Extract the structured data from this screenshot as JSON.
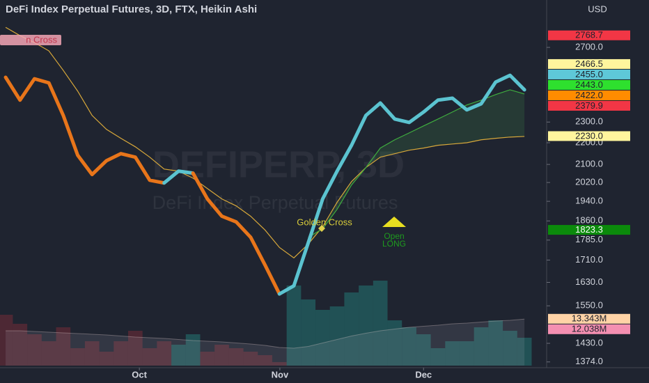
{
  "chart_data": {
    "type": "line",
    "title": "DeFi Index Perpetual Futures, 3D, FTX, Heikin Ashi",
    "currency": "USD",
    "watermark": "DEFIPERP, 3D",
    "watermark_subtitle": "DeFi Index Perpetual Futures",
    "log_scale": true,
    "grid": false,
    "xlim": [
      -0.39,
      37.54
    ],
    "xticks": [
      {
        "value": 9.28,
        "label": "Oct"
      },
      {
        "value": 19.03,
        "label": "Nov"
      },
      {
        "value": 29.0,
        "label": "Dec"
      }
    ],
    "ylim": [
      1333,
      2923
    ],
    "yticks": [
      {
        "value": 2700,
        "label": "2700.0"
      },
      {
        "value": 2300,
        "label": "2300.0"
      },
      {
        "value": 2200,
        "label": "2200.0"
      },
      {
        "value": 2100,
        "label": "2100.0"
      },
      {
        "value": 2020,
        "label": "2020.0"
      },
      {
        "value": 1940,
        "label": "1940.0"
      },
      {
        "value": 1860,
        "label": "1860.0"
      },
      {
        "value": 1785,
        "label": "1785.0"
      },
      {
        "value": 1710,
        "label": "1710.0"
      },
      {
        "value": 1630,
        "label": "1630.0"
      },
      {
        "value": 1550,
        "label": "1550.0"
      },
      {
        "value": 1430,
        "label": "1430.0"
      },
      {
        "value": 1374,
        "label": "1374.0"
      }
    ],
    "series": [
      {
        "values": [
          2532,
          2411,
          2524,
          2502,
          2333,
          2142,
          2055,
          2117,
          2149,
          2133,
          2030,
          2018,
          2070,
          2061,
          1950,
          1879,
          1856,
          1796,
          1692,
          1590,
          1618,
          1775,
          1950,
          2070,
          2188,
          2333,
          2396,
          2315,
          2298,
          2350,
          2411,
          2421,
          2361,
          2392,
          2506,
          2543,
          2465
        ],
        "colors": [
          "#e8751a",
          "#e8751a",
          "#e8751a",
          "#e8751a",
          "#e8751a",
          "#e8751a",
          "#e8751a",
          "#e8751a",
          "#e8751a",
          "#e8751a",
          "#e8751a",
          "#e8751a",
          "#5bc3d0",
          "#5bc3d0",
          "#e8751a",
          "#e8751a",
          "#e8751a",
          "#e8751a",
          "#e8751a",
          "#e8751a",
          "#5bc3d0",
          "#5bc3d0",
          "#5bc3d0",
          "#5bc3d0",
          "#5bc3d0",
          "#5bc3d0",
          "#5bc3d0",
          "#5bc3d0",
          "#5bc3d0",
          "#5bc3d0",
          "#5bc3d0",
          "#5bc3d0",
          "#5bc3d0",
          "#5bc3d0",
          "#5bc3d0",
          "#5bc3d0",
          "#5bc3d0"
        ]
      },
      {
        "color": "#d8a83a",
        "values": [
          2819,
          2769,
          2728,
          2680,
          2570,
          2458,
          2333,
          2264,
          2221,
          2181,
          2133,
          2079,
          2070,
          2039,
          1994,
          1950,
          1921,
          1879,
          1824,
          1757,
          1718,
          1770,
          1837,
          1936,
          2024,
          2086,
          2133,
          2149,
          2165,
          2175,
          2188,
          2194,
          2200,
          2214,
          2221,
          2227,
          2230
        ]
      },
      {
        "color": "#3fae3f",
        "values": [
          null,
          null,
          null,
          null,
          null,
          null,
          null,
          null,
          null,
          null,
          null,
          null,
          null,
          null,
          null,
          null,
          null,
          null,
          null,
          null,
          null,
          1796,
          1829,
          1907,
          2009,
          2086,
          2175,
          2214,
          2247,
          2281,
          2315,
          2350,
          2386,
          2411,
          2440,
          2465,
          2443
        ]
      }
    ],
    "volume": {
      "vlim": [
        0,
        15000000
      ],
      "values": [
        14600000,
        12000000,
        9000000,
        7000000,
        11000000,
        5000000,
        7000000,
        4000000,
        7000000,
        10000000,
        5000000,
        7000000,
        6000000,
        9000000,
        4000000,
        6000000,
        5000000,
        4000000,
        3000000,
        1000000,
        23000000,
        19000000,
        16000000,
        17000000,
        21000000,
        23000000,
        24400000,
        13000000,
        11000000,
        9000000,
        5000000,
        7000000,
        7000000,
        11000000,
        13000000,
        10000000,
        8000000
      ],
      "ma": [
        10000000,
        10000000,
        9800000,
        9600000,
        9400000,
        9200000,
        9000000,
        8800000,
        8500000,
        8200000,
        8000000,
        7800000,
        7500000,
        7200000,
        7000000,
        6800000,
        6500000,
        6200000,
        5800000,
        5200000,
        5000000,
        5500000,
        6500000,
        7500000,
        8500000,
        9300000,
        10000000,
        10500000,
        11000000,
        11300000,
        11600000,
        12000000,
        12200000,
        12500000,
        12800000,
        13000000,
        13343000
      ],
      "labels": [
        {
          "value": 13343000,
          "label": "13.343M",
          "color": "#ffd3a6"
        },
        {
          "value": 12038000,
          "label": "12.038M",
          "color": "#f48fb1"
        }
      ]
    },
    "price_labels": [
      {
        "value": 2768.7,
        "label": "2768.7",
        "color": "#f23645",
        "text": "#1e222d"
      },
      {
        "value": 2466.5,
        "label": "2466.5",
        "color": "#fff59d",
        "text": "#1e222d"
      },
      {
        "value": 2455.0,
        "label": "2455.0",
        "color": "#5ec8d8",
        "text": "#1e222d"
      },
      {
        "value": 2443.0,
        "label": "2443.0",
        "color": "#2ee02e",
        "text": "#1e222d"
      },
      {
        "value": 2422.0,
        "label": "2422.0",
        "color": "#ff8c00",
        "text": "#1e222d"
      },
      {
        "value": 2379.9,
        "label": "2379.9",
        "color": "#f23645",
        "text": "#1e222d"
      },
      {
        "value": 2230.0,
        "label": "2230.0",
        "color": "#fff59d",
        "text": "#1e222d"
      },
      {
        "value": 1823.3,
        "label": "1823.3",
        "color": "#0b8a0b",
        "text": "#ffffff"
      }
    ],
    "annotations": {
      "death_cross": "n Cross",
      "golden_cross": "Golden Cross",
      "open": "Open",
      "long": "LONG"
    }
  }
}
